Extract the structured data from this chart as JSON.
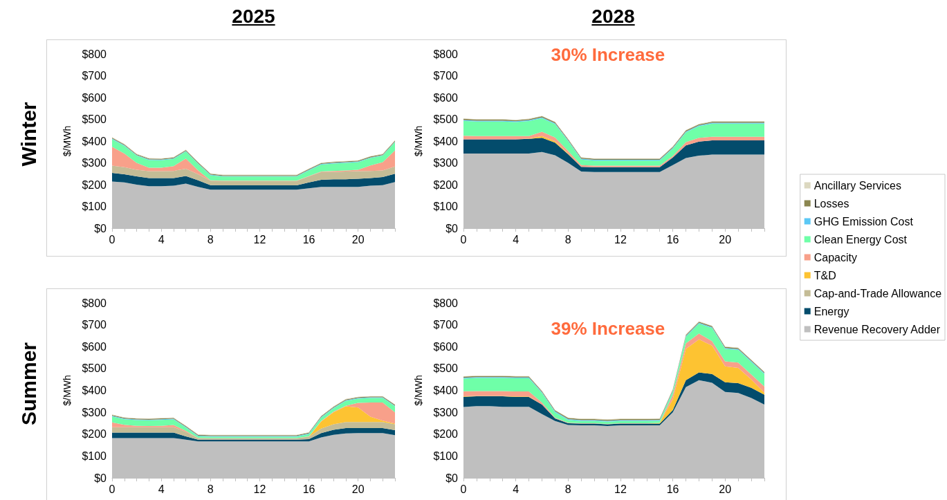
{
  "chart_data": [
    {
      "type": "area",
      "title": "2025",
      "ylabel": "$/MWh",
      "annotations": [
        "Winter"
      ],
      "stacked": true,
      "legend": false,
      "categories": [
        "0",
        null,
        null,
        null,
        "4",
        null,
        null,
        null,
        "8",
        null,
        null,
        null,
        "12",
        null,
        null,
        null,
        "16",
        null,
        null,
        null,
        "20",
        null,
        null,
        null
      ],
      "ylim": [
        0,
        800
      ],
      "yticks": [
        {
          "value": 0,
          "label": "$0"
        },
        {
          "value": 100,
          "label": "$100"
        },
        {
          "value": 200,
          "label": "$200"
        },
        {
          "value": 300,
          "label": "$300"
        },
        {
          "value": 400,
          "label": "$400"
        },
        {
          "value": 500,
          "label": "$500"
        },
        {
          "value": 600,
          "label": "$600"
        },
        {
          "value": 700,
          "label": "$700"
        },
        {
          "value": 800,
          "label": "$800"
        }
      ],
      "series": [
        {
          "color": "#bfbfbf",
          "values": [
            214,
            210,
            200,
            193,
            193,
            195,
            205,
            190,
            177,
            177,
            177,
            177,
            177,
            177,
            177,
            177,
            183,
            190,
            190,
            190,
            190,
            195,
            198,
            212
          ]
        },
        {
          "color": "#034c6c",
          "values": [
            40,
            38,
            38,
            37,
            37,
            35,
            35,
            30,
            21,
            20,
            20,
            20,
            20,
            20,
            20,
            20,
            27,
            32,
            35,
            35,
            37,
            35,
            37,
            38
          ]
        },
        {
          "color": "#c4bc96",
          "values": [
            33,
            32,
            30,
            32,
            32,
            33,
            33,
            28,
            20,
            20,
            20,
            20,
            20,
            20,
            20,
            20,
            28,
            36,
            33,
            35,
            35,
            33,
            30,
            33
          ]
        },
        {
          "color": "#f8a08a",
          "values": [
            87,
            63,
            32,
            16,
            16,
            22,
            47,
            17,
            2,
            1,
            1,
            1,
            1,
            1,
            1,
            1,
            2,
            2,
            5,
            5,
            6,
            25,
            38,
            74
          ]
        },
        {
          "color": "#6fffa8",
          "values": [
            35,
            35,
            33,
            35,
            34,
            33,
            32,
            30,
            23,
            19,
            19,
            19,
            19,
            19,
            19,
            19,
            25,
            32,
            34,
            35,
            35,
            34,
            30,
            38
          ]
        },
        {
          "color": "#5bc8f5",
          "values": [
            3,
            3,
            3,
            3,
            3,
            3,
            3,
            3,
            3,
            3,
            3,
            3,
            3,
            3,
            3,
            3,
            3,
            3,
            3,
            3,
            3,
            3,
            3,
            3
          ]
        },
        {
          "color": "#8b8650",
          "values": [
            4,
            4,
            4,
            4,
            4,
            4,
            4,
            4,
            4,
            4,
            4,
            4,
            4,
            4,
            4,
            4,
            4,
            4,
            4,
            4,
            4,
            4,
            4,
            4
          ]
        },
        {
          "color": "#dcd8c0",
          "values": [
            2,
            2,
            2,
            2,
            2,
            2,
            2,
            2,
            2,
            2,
            2,
            2,
            2,
            2,
            2,
            2,
            2,
            2,
            2,
            2,
            2,
            2,
            2,
            2
          ]
        }
      ]
    },
    {
      "type": "area",
      "title": "2028",
      "ylabel": "$/MWh",
      "annotations": [
        "30% Increase"
      ],
      "stacked": true,
      "legend": false,
      "categories": [
        "0",
        null,
        null,
        null,
        "4",
        null,
        null,
        null,
        "8",
        null,
        null,
        null,
        "12",
        null,
        null,
        null,
        "16",
        null,
        null,
        null,
        "20",
        null,
        null,
        null
      ],
      "ylim": [
        0,
        800
      ],
      "yticks": [
        {
          "value": 0,
          "label": "$0"
        },
        {
          "value": 100,
          "label": "$100"
        },
        {
          "value": 200,
          "label": "$200"
        },
        {
          "value": 300,
          "label": "$300"
        },
        {
          "value": 400,
          "label": "$400"
        },
        {
          "value": 500,
          "label": "$500"
        },
        {
          "value": 600,
          "label": "$600"
        },
        {
          "value": 700,
          "label": "$700"
        },
        {
          "value": 800,
          "label": "$800"
        }
      ],
      "series": [
        {
          "color": "#bfbfbf",
          "values": [
            343,
            343,
            343,
            343,
            343,
            343,
            350,
            335,
            300,
            260,
            258,
            258,
            258,
            258,
            258,
            258,
            290,
            322,
            333,
            338,
            338,
            338,
            338,
            338
          ]
        },
        {
          "color": "#034c6c",
          "values": [
            65,
            65,
            65,
            65,
            65,
            67,
            65,
            58,
            40,
            22,
            22,
            22,
            22,
            22,
            22,
            22,
            35,
            58,
            65,
            65,
            65,
            65,
            65,
            65
          ]
        },
        {
          "color": "#fdc332",
          "values": [
            0,
            0,
            0,
            0,
            0,
            2,
            8,
            6,
            3,
            0,
            0,
            0,
            0,
            0,
            0,
            0,
            0,
            0,
            0,
            0,
            0,
            0,
            0,
            0
          ]
        },
        {
          "color": "#f8a08a",
          "values": [
            17,
            15,
            15,
            15,
            15,
            11,
            20,
            18,
            12,
            8,
            7,
            7,
            7,
            7,
            7,
            7,
            7,
            15,
            17,
            17,
            17,
            17,
            17,
            17
          ]
        },
        {
          "color": "#6fffa8",
          "values": [
            68,
            67,
            67,
            67,
            64,
            69,
            62,
            61,
            45,
            25,
            23,
            23,
            23,
            23,
            23,
            23,
            33,
            45,
            53,
            60,
            60,
            60,
            60,
            60
          ]
        },
        {
          "color": "#5bc8f5",
          "values": [
            4,
            4,
            4,
            4,
            4,
            4,
            4,
            4,
            4,
            4,
            4,
            4,
            4,
            4,
            4,
            4,
            4,
            4,
            4,
            4,
            4,
            4,
            4,
            4
          ]
        },
        {
          "color": "#8b8650",
          "values": [
            5,
            5,
            5,
            5,
            5,
            5,
            5,
            5,
            5,
            5,
            5,
            5,
            5,
            5,
            5,
            5,
            5,
            5,
            5,
            5,
            5,
            5,
            5,
            5
          ]
        },
        {
          "color": "#dcd8c0",
          "values": [
            2,
            2,
            2,
            2,
            2,
            2,
            2,
            2,
            2,
            2,
            2,
            2,
            2,
            2,
            2,
            2,
            2,
            2,
            2,
            2,
            2,
            2,
            2,
            2
          ]
        }
      ]
    },
    {
      "type": "area",
      "ylabel": "$/MWh",
      "annotations": [
        "Summer"
      ],
      "stacked": true,
      "legend": "right",
      "categories": [
        "0",
        null,
        null,
        null,
        "4",
        null,
        null,
        null,
        "8",
        null,
        null,
        null,
        "12",
        null,
        null,
        null,
        "16",
        null,
        null,
        null,
        "20",
        null,
        null,
        null
      ],
      "ylim": [
        0,
        800
      ],
      "yticks": [
        {
          "value": 0,
          "label": "$0"
        },
        {
          "value": 100,
          "label": "$100"
        },
        {
          "value": 200,
          "label": "$200"
        },
        {
          "value": 300,
          "label": "$300"
        },
        {
          "value": 400,
          "label": "$400"
        },
        {
          "value": 500,
          "label": "$500"
        },
        {
          "value": 600,
          "label": "$600"
        },
        {
          "value": 700,
          "label": "$700"
        },
        {
          "value": 800,
          "label": "$800"
        }
      ],
      "series": [
        {
          "name": "Revenue Recovery Adder",
          "color": "#bfbfbf",
          "values": [
            182,
            182,
            182,
            182,
            182,
            182,
            175,
            167,
            167,
            167,
            167,
            167,
            167,
            167,
            167,
            167,
            167,
            185,
            197,
            203,
            205,
            205,
            205,
            195
          ]
        },
        {
          "name": "Energy",
          "color": "#034c6c",
          "values": [
            25,
            25,
            25,
            25,
            25,
            25,
            15,
            8,
            8,
            8,
            8,
            8,
            8,
            8,
            8,
            8,
            10,
            20,
            23,
            25,
            23,
            23,
            23,
            23
          ]
        },
        {
          "name": "Cap-and-Trade Allowance",
          "color": "#c4bc96",
          "values": [
            25,
            25,
            25,
            25,
            25,
            25,
            20,
            7,
            7,
            7,
            7,
            7,
            7,
            7,
            7,
            7,
            11,
            20,
            25,
            27,
            27,
            27,
            27,
            27
          ]
        },
        {
          "name": "T&D",
          "color": "#fdc332",
          "values": [
            0,
            0,
            0,
            0,
            0,
            0,
            0,
            0,
            0,
            0,
            0,
            0,
            0,
            0,
            0,
            0,
            0,
            33,
            55,
            72,
            67,
            25,
            7,
            3
          ]
        },
        {
          "name": "Capacity",
          "color": "#f8a08a",
          "values": [
            22,
            11,
            6,
            5,
            6,
            10,
            5,
            1,
            0,
            0,
            0,
            0,
            0,
            0,
            0,
            0,
            2,
            2,
            3,
            3,
            21,
            65,
            83,
            52
          ]
        },
        {
          "name": "Clean Energy Cost",
          "color": "#6fffa8",
          "values": [
            27,
            25,
            26,
            26,
            27,
            25,
            15,
            7,
            6,
            6,
            6,
            6,
            6,
            6,
            6,
            6,
            10,
            15,
            15,
            22,
            19,
            20,
            20,
            27
          ]
        },
        {
          "name": "GHG Emission Cost",
          "color": "#5bc8f5",
          "values": [
            3,
            3,
            3,
            3,
            3,
            3,
            3,
            3,
            3,
            3,
            3,
            3,
            3,
            3,
            3,
            3,
            3,
            3,
            3,
            3,
            3,
            3,
            3,
            3
          ]
        },
        {
          "name": "Losses",
          "color": "#8b8650",
          "values": [
            4,
            4,
            4,
            4,
            4,
            4,
            4,
            4,
            4,
            4,
            4,
            4,
            4,
            4,
            4,
            4,
            4,
            4,
            4,
            4,
            4,
            4,
            4,
            4
          ]
        },
        {
          "name": "Ancillary Services",
          "color": "#dcd8c0",
          "values": [
            2,
            2,
            2,
            2,
            2,
            2,
            2,
            2,
            2,
            2,
            2,
            2,
            2,
            2,
            2,
            2,
            2,
            2,
            2,
            2,
            2,
            2,
            2,
            2
          ]
        }
      ]
    },
    {
      "type": "area",
      "ylabel": "$/MWh",
      "annotations": [
        "39% Increase"
      ],
      "stacked": true,
      "legend": false,
      "categories": [
        "0",
        null,
        null,
        null,
        "4",
        null,
        null,
        null,
        "8",
        null,
        null,
        null,
        "12",
        null,
        null,
        null,
        "16",
        null,
        null,
        null,
        "20",
        null,
        null,
        null
      ],
      "ylim": [
        0,
        800
      ],
      "yticks": [
        {
          "value": 0,
          "label": "$0"
        },
        {
          "value": 100,
          "label": "$100"
        },
        {
          "value": 200,
          "label": "$200"
        },
        {
          "value": 300,
          "label": "$300"
        },
        {
          "value": 400,
          "label": "$400"
        },
        {
          "value": 500,
          "label": "$500"
        },
        {
          "value": 600,
          "label": "$600"
        },
        {
          "value": 700,
          "label": "$700"
        },
        {
          "value": 800,
          "label": "$800"
        }
      ],
      "series": [
        {
          "color": "#bfbfbf",
          "values": [
            324,
            328,
            328,
            325,
            325,
            325,
            292,
            260,
            242,
            240,
            240,
            237,
            240,
            240,
            240,
            240,
            300,
            415,
            447,
            435,
            393,
            388,
            365,
            335
          ]
        },
        {
          "color": "#034c6c",
          "values": [
            47,
            45,
            45,
            48,
            45,
            45,
            43,
            12,
            8,
            8,
            8,
            8,
            8,
            8,
            8,
            8,
            10,
            32,
            35,
            40,
            44,
            45,
            47,
            45
          ]
        },
        {
          "color": "#fdc332",
          "values": [
            2,
            2,
            2,
            2,
            2,
            2,
            0,
            0,
            0,
            0,
            0,
            0,
            0,
            0,
            0,
            3,
            50,
            143,
            151,
            130,
            73,
            70,
            38,
            10
          ]
        },
        {
          "color": "#f8a08a",
          "values": [
            23,
            22,
            22,
            22,
            23,
            23,
            10,
            3,
            2,
            2,
            2,
            2,
            2,
            2,
            2,
            0,
            20,
            25,
            27,
            20,
            23,
            24,
            23,
            28
          ]
        },
        {
          "color": "#6fffa8",
          "values": [
            58,
            60,
            60,
            60,
            60,
            60,
            43,
            25,
            13,
            10,
            10,
            10,
            10,
            10,
            10,
            10,
            15,
            30,
            45,
            60,
            57,
            58,
            57,
            57
          ]
        },
        {
          "color": "#5bc8f5",
          "values": [
            4,
            4,
            4,
            4,
            4,
            4,
            4,
            4,
            4,
            4,
            4,
            4,
            4,
            4,
            4,
            4,
            4,
            4,
            4,
            4,
            4,
            4,
            4,
            4
          ]
        },
        {
          "color": "#8b8650",
          "values": [
            5,
            5,
            5,
            5,
            5,
            5,
            5,
            5,
            5,
            5,
            5,
            5,
            5,
            5,
            5,
            5,
            5,
            5,
            5,
            5,
            5,
            5,
            5,
            5
          ]
        },
        {
          "color": "#dcd8c0",
          "values": [
            2,
            2,
            2,
            2,
            2,
            2,
            2,
            2,
            2,
            2,
            2,
            2,
            2,
            2,
            2,
            2,
            2,
            2,
            2,
            2,
            2,
            2,
            2,
            2
          ]
        }
      ]
    }
  ]
}
